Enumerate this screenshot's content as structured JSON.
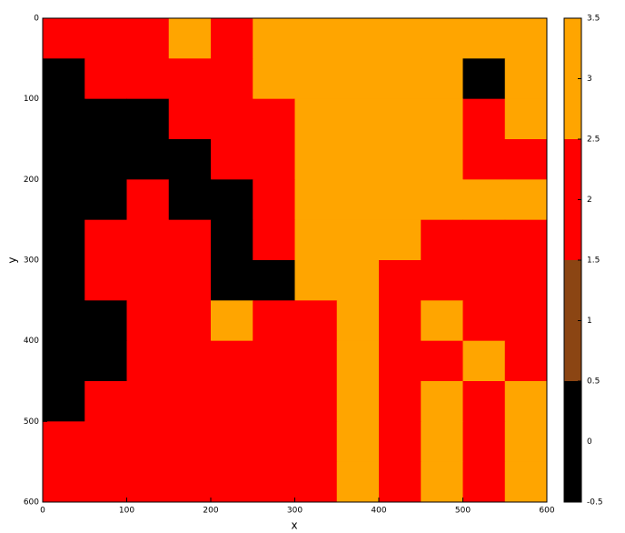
{
  "chart_data": {
    "type": "heatmap",
    "x_label": "x",
    "y_label": "y",
    "xlim": [
      0,
      600
    ],
    "ylim": [
      0,
      600
    ],
    "y_inverted": true,
    "xticks": [
      0,
      100,
      200,
      300,
      400,
      500,
      600
    ],
    "yticks": [
      0,
      100,
      200,
      300,
      400,
      500,
      600
    ],
    "z": [
      [
        2,
        2,
        2,
        3,
        2,
        3,
        3,
        3,
        3,
        3,
        3,
        3
      ],
      [
        0,
        2,
        2,
        2,
        2,
        3,
        3,
        3,
        3,
        3,
        0,
        3
      ],
      [
        0,
        0,
        0,
        2,
        2,
        2,
        3,
        3,
        3,
        3,
        2,
        3
      ],
      [
        0,
        0,
        0,
        0,
        2,
        2,
        3,
        3,
        3,
        3,
        2,
        2
      ],
      [
        0,
        0,
        2,
        0,
        0,
        2,
        3,
        3,
        3,
        3,
        3,
        3
      ],
      [
        0,
        2,
        2,
        2,
        0,
        2,
        3,
        3,
        3,
        2,
        2,
        2
      ],
      [
        0,
        2,
        2,
        2,
        0,
        0,
        3,
        3,
        2,
        2,
        2,
        2
      ],
      [
        0,
        0,
        2,
        2,
        3,
        2,
        2,
        3,
        2,
        3,
        2,
        2
      ],
      [
        0,
        0,
        2,
        2,
        2,
        2,
        2,
        3,
        2,
        2,
        3,
        2
      ],
      [
        0,
        2,
        2,
        2,
        2,
        2,
        2,
        3,
        2,
        3,
        2,
        3
      ],
      [
        2,
        2,
        2,
        2,
        2,
        2,
        2,
        3,
        2,
        3,
        2,
        3
      ],
      [
        2,
        2,
        2,
        2,
        2,
        2,
        2,
        3,
        2,
        3,
        2,
        3
      ]
    ],
    "colorbar": {
      "lim": [
        -0.5,
        3.5
      ],
      "ticks": [
        -0.5,
        0,
        0.5,
        1,
        1.5,
        2,
        2.5,
        3,
        3.5
      ],
      "levels": [
        0,
        1,
        2,
        3
      ],
      "colors": [
        "#000000",
        "#8b4513",
        "#ff0000",
        "#ffa500"
      ]
    }
  }
}
